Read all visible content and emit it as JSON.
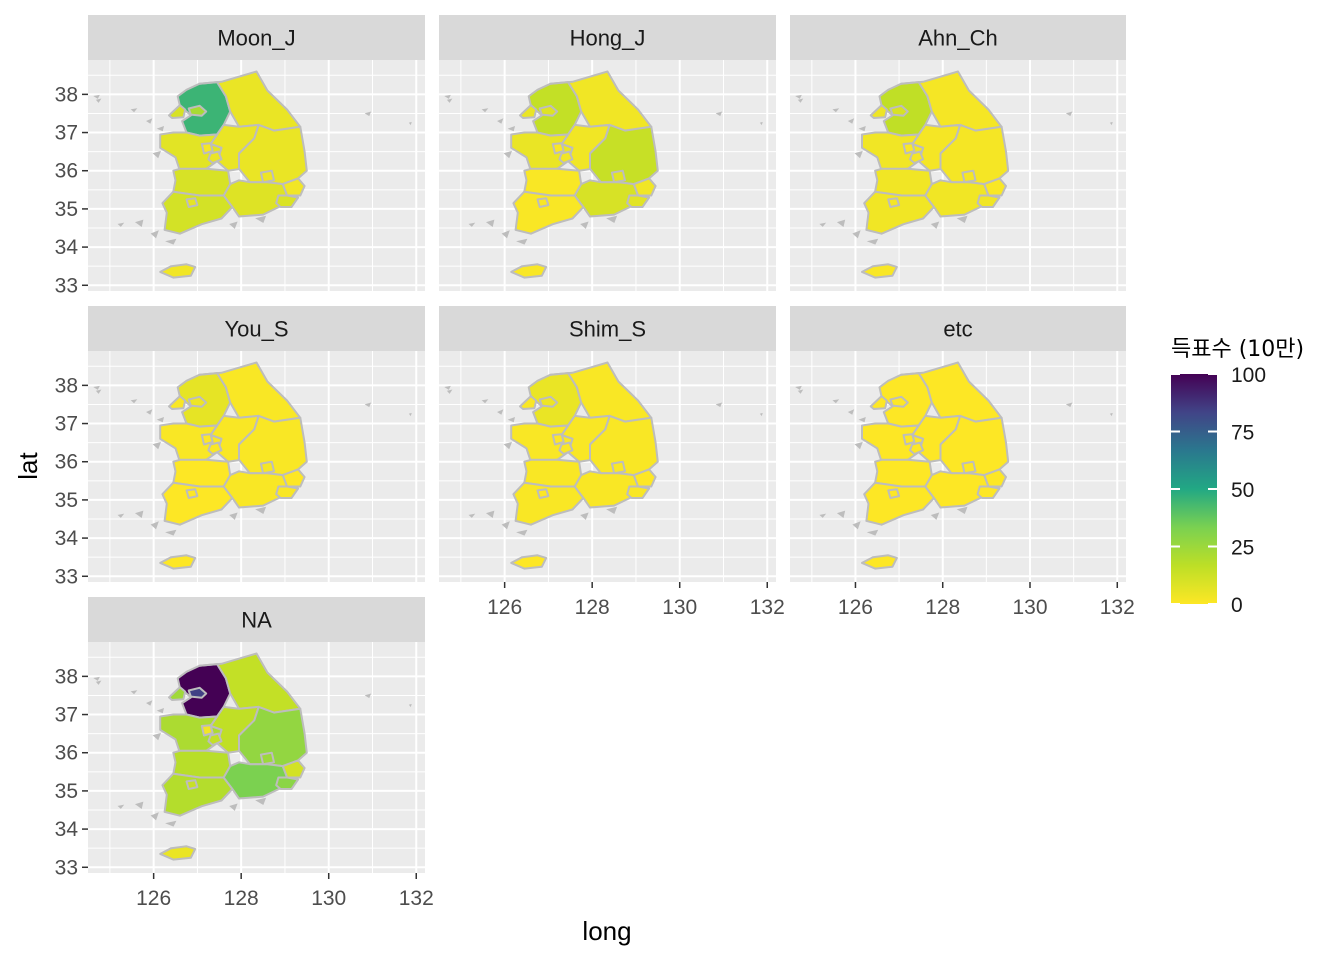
{
  "figure": {
    "x_axis_title": "long",
    "y_axis_title": "lat",
    "legend_title": "득표수 (10만)",
    "legend_ticks": [
      "100",
      "75",
      "50",
      "25",
      "0"
    ],
    "legend_values": [
      100,
      75,
      50,
      25,
      0
    ],
    "colors": {
      "panel_bg": "#ebebeb",
      "grid": "#ffffff",
      "strip_bg": "#d9d9d9",
      "border": "#bdbdbd",
      "viridis": [
        "#fde725",
        "#bddf26",
        "#7ad151",
        "#22a884",
        "#2a788e",
        "#414487",
        "#440154"
      ]
    }
  },
  "chart_data": {
    "type": "choropleth",
    "xlabel": "long",
    "ylabel": "lat",
    "xlim": [
      124.5,
      132.2
    ],
    "ylim": [
      32.85,
      38.9
    ],
    "x_ticks": [
      126,
      128,
      130,
      132
    ],
    "y_ticks": [
      33,
      34,
      35,
      36,
      37,
      38
    ],
    "x_tick_labels": [
      "126",
      "128",
      "130",
      "132"
    ],
    "y_tick_labels": [
      "33",
      "34",
      "35",
      "36",
      "37",
      "38"
    ],
    "fill_scale": {
      "name": "득표수 (10만)",
      "range": [
        0,
        100
      ],
      "palette": "viridis",
      "direction": -1
    },
    "panels": [
      {
        "name": "Moon_J",
        "values": {
          "seoul": 22,
          "gyeonggi": 45,
          "incheon": 10,
          "gangwon": 5,
          "chungbuk": 5,
          "chungnam": 7,
          "daejeon": 5,
          "sejong": 2,
          "jeonbuk": 10,
          "jeonnam": 11,
          "gwangju": 6,
          "gyeongbuk": 5,
          "daegu": 4,
          "gyeongnam": 8,
          "busan": 9,
          "ulsan": 3,
          "jeju": 3
        }
      },
      {
        "name": "Hong_J",
        "values": {
          "seoul": 8,
          "gyeonggi": 15,
          "incheon": 5,
          "gangwon": 3,
          "chungbuk": 3,
          "chungnam": 5,
          "daejeon": 3,
          "sejong": 1,
          "jeonbuk": 1,
          "jeonnam": 1,
          "gwangju": 1,
          "gyeongbuk": 14,
          "daegu": 7,
          "gyeongnam": 10,
          "busan": 7,
          "ulsan": 3,
          "jeju": 1
        }
      },
      {
        "name": "Ahn_Ch",
        "values": {
          "seoul": 10,
          "gyeonggi": 16,
          "incheon": 4,
          "gangwon": 2,
          "chungbuk": 2,
          "chungnam": 3,
          "daejeon": 2,
          "sejong": 1,
          "jeonbuk": 3,
          "jeonnam": 3,
          "gwangju": 2,
          "gyeongbuk": 2,
          "daegu": 2,
          "gyeongnam": 3,
          "busan": 3,
          "ulsan": 1,
          "jeju": 1
        }
      },
      {
        "name": "You_S",
        "values": {
          "seoul": 4,
          "gyeonggi": 6,
          "incheon": 1,
          "gangwon": 1,
          "chungbuk": 1,
          "chungnam": 1,
          "daejeon": 1,
          "sejong": 0,
          "jeonbuk": 0,
          "jeonnam": 0,
          "gwangju": 0,
          "gyeongbuk": 1,
          "daegu": 2,
          "gyeongnam": 1,
          "busan": 1,
          "ulsan": 0,
          "jeju": 0
        }
      },
      {
        "name": "Shim_S",
        "values": {
          "seoul": 4,
          "gyeonggi": 5,
          "incheon": 1,
          "gangwon": 1,
          "chungbuk": 1,
          "chungnam": 1,
          "daejeon": 1,
          "sejong": 0,
          "jeonbuk": 1,
          "jeonnam": 1,
          "gwangju": 0,
          "gyeongbuk": 1,
          "daegu": 1,
          "gyeongnam": 1,
          "busan": 1,
          "ulsan": 0,
          "jeju": 0
        }
      },
      {
        "name": "etc",
        "values": {
          "seoul": 0,
          "gyeonggi": 0,
          "incheon": 0,
          "gangwon": 0,
          "chungbuk": 0,
          "chungnam": 0,
          "daejeon": 0,
          "sejong": 0,
          "jeonbuk": 0,
          "jeonnam": 0,
          "gwangju": 0,
          "gyeongbuk": 0,
          "daegu": 0,
          "gyeongnam": 0,
          "busan": 0,
          "ulsan": 0,
          "jeju": 0
        }
      },
      {
        "name": "NA",
        "values": {
          "seoul": 84,
          "gyeonggi": 100,
          "incheon": 24,
          "gangwon": 15,
          "chungbuk": 16,
          "chungnam": 21,
          "daejeon": 15,
          "sejong": 3,
          "jeonbuk": 18,
          "jeonnam": 19,
          "gwangju": 14,
          "gyeongbuk": 27,
          "daegu": 25,
          "gyeongnam": 33,
          "busan": 29,
          "ulsan": 11,
          "jeju": 5
        }
      }
    ]
  }
}
